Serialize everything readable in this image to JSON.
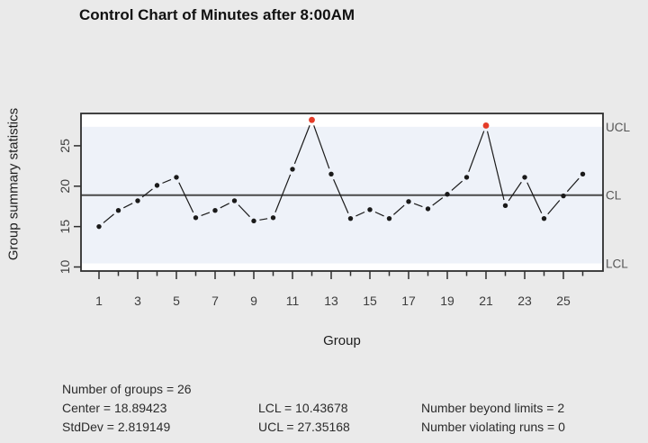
{
  "title": "Control Chart of Minutes after 8:00AM",
  "y_axis": {
    "label": "Group summary statistics",
    "ticks": [
      10,
      15,
      20,
      25
    ]
  },
  "x_axis": {
    "label": "Group",
    "labeled_ticks": [
      1,
      3,
      5,
      7,
      9,
      11,
      13,
      15,
      17,
      19,
      21,
      23,
      25
    ]
  },
  "limit_labels": {
    "ucl": "UCL",
    "cl": "CL",
    "lcl": "LCL"
  },
  "chart_data": {
    "type": "line",
    "title": "Control Chart of Minutes after 8:00AM",
    "xlabel": "Group",
    "ylabel": "Group summary statistics",
    "x": [
      1,
      2,
      3,
      4,
      5,
      6,
      7,
      8,
      9,
      10,
      11,
      12,
      13,
      14,
      15,
      16,
      17,
      18,
      19,
      20,
      21,
      22,
      23,
      24,
      25,
      26
    ],
    "values": [
      15.0,
      17.0,
      18.2,
      20.1,
      21.1,
      16.1,
      17.0,
      18.2,
      15.7,
      16.1,
      22.1,
      28.2,
      21.5,
      16.0,
      17.1,
      16.0,
      18.1,
      17.2,
      19.0,
      21.1,
      27.5,
      17.6,
      21.1,
      16.0,
      18.8,
      21.5
    ],
    "violations": [
      12,
      21
    ],
    "center": 18.89423,
    "stddev": 2.819149,
    "lcl": 10.43678,
    "ucl": 27.35168,
    "number_of_groups": 26,
    "number_beyond_limits": 2,
    "number_violating_runs": 0,
    "ylim": [
      9.5,
      29.0
    ],
    "grid": false,
    "legend_position": "none"
  },
  "stats": {
    "groups": "Number of groups = 26",
    "center": "Center = 18.89423",
    "stddev": "StdDev = 2.819149",
    "lcl": "LCL = 10.43678",
    "ucl": "UCL = 27.35168",
    "beyond": "Number beyond limits = 2",
    "runs": "Number violating runs = 0"
  },
  "colors": {
    "background": "#eaeaea",
    "plot_out_of_limits_zone": "#ffffff",
    "plot_in_limits_band": "#eef2f9",
    "box_border": "#2e2e2e",
    "center_line": "#4a4a4a",
    "point": "#1a1a1a",
    "violation_point": "#e53c28",
    "tick_text": "#3d3d3d",
    "limit_label_text": "#555555"
  }
}
